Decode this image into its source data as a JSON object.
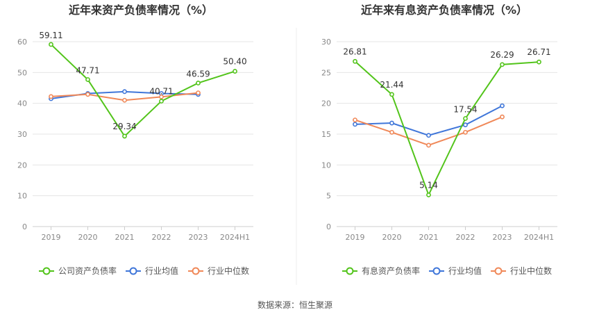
{
  "source_label": "数据来源：恒生聚源",
  "colors": {
    "primary": "#52c41a",
    "average": "#3f76d9",
    "median": "#f08858",
    "grid": "#e5e5e5",
    "axis": "#cccccc"
  },
  "chart_data": [
    {
      "type": "line",
      "title": "近年来资产负债率情况（%）",
      "categories": [
        "2019",
        "2020",
        "2021",
        "2022",
        "2023",
        "2024H1"
      ],
      "ylim": [
        0,
        60
      ],
      "yticks": [
        "0",
        "10",
        "20",
        "30",
        "40",
        "50",
        "60"
      ],
      "grid": true,
      "legend": "bottom",
      "series": [
        {
          "name": "公司资产负债率",
          "values": [
            59.11,
            47.71,
            29.34,
            40.71,
            46.59,
            50.4
          ],
          "labels": [
            "59.11",
            "47.71",
            "29.34",
            "40.71",
            "46.59",
            "50.40"
          ]
        },
        {
          "name": "行业均值",
          "values": [
            41.5,
            43.2,
            43.8,
            43.2,
            42.9,
            null
          ]
        },
        {
          "name": "行业中位数",
          "values": [
            42.2,
            42.9,
            41.0,
            42.1,
            43.4,
            null
          ]
        }
      ]
    },
    {
      "type": "line",
      "title": "近年来有息资产负债率情况（%）",
      "categories": [
        "2019",
        "2020",
        "2021",
        "2022",
        "2023",
        "2024H1"
      ],
      "ylim": [
        0,
        30
      ],
      "yticks": [
        "0",
        "5",
        "10",
        "15",
        "20",
        "25",
        "30"
      ],
      "grid": true,
      "legend": "bottom",
      "series": [
        {
          "name": "有息资产负债率",
          "values": [
            26.81,
            21.44,
            5.14,
            17.54,
            26.29,
            26.71
          ],
          "labels": [
            "26.81",
            "21.44",
            "5.14",
            "17.54",
            "26.29",
            "26.71"
          ]
        },
        {
          "name": "行业均值",
          "values": [
            16.6,
            16.8,
            14.8,
            16.5,
            19.6,
            null
          ]
        },
        {
          "name": "行业中位数",
          "values": [
            17.3,
            15.3,
            13.2,
            15.3,
            17.8,
            null
          ]
        }
      ]
    }
  ]
}
